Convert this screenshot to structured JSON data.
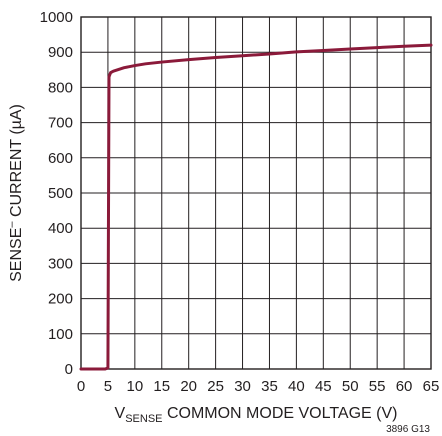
{
  "chart_data": {
    "type": "line",
    "title": "",
    "xlabel_main": "V",
    "xlabel_sub": "SENSE",
    "xlabel_rest": " COMMON MODE VOLTAGE (V)",
    "ylabel_main": "SENSE",
    "ylabel_sup": "–",
    "ylabel_rest": " CURRENT (µA)",
    "xlim": [
      0,
      65
    ],
    "ylim": [
      0,
      1000
    ],
    "x_ticks": [
      "0",
      "5",
      "10",
      "15",
      "20",
      "25",
      "30",
      "35",
      "40",
      "45",
      "50",
      "55",
      "60",
      "65"
    ],
    "y_ticks": [
      "0",
      "100",
      "200",
      "300",
      "400",
      "500",
      "600",
      "700",
      "800",
      "900",
      "1000"
    ],
    "grid": true,
    "figure_id": "3896 G13",
    "series": [
      {
        "color": "#8b1a3a",
        "x": [
          0,
          4.5,
          5.0,
          5.2,
          5.5,
          6,
          8,
          10,
          12,
          15,
          20,
          25,
          30,
          35,
          40,
          45,
          50,
          55,
          60,
          65
        ],
        "y": [
          0,
          0,
          3,
          830,
          842,
          846,
          856,
          862,
          867,
          872,
          879,
          885,
          890,
          895,
          901,
          905,
          909,
          913,
          917,
          920
        ]
      }
    ]
  }
}
